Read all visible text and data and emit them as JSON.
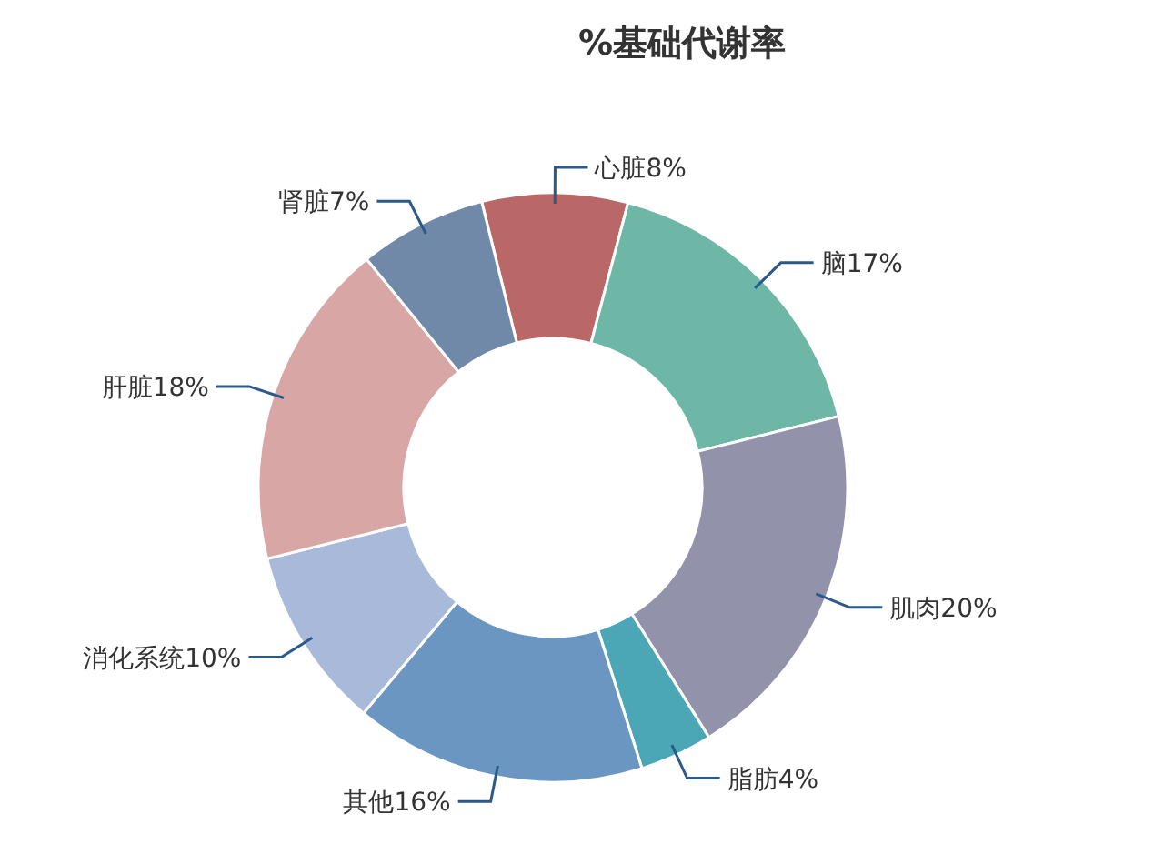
{
  "chart_data": {
    "type": "donut",
    "title": "%基础代谢率",
    "categories": [
      "心脏",
      "脑",
      "肌肉",
      "脂肪",
      "其他",
      "消化系统",
      "肝脏",
      "肾脏"
    ],
    "values": [
      8,
      17,
      20,
      4,
      16,
      10,
      18,
      7
    ],
    "value_labels": [
      "8%",
      "17%",
      "20%",
      "4%",
      "16%",
      "10%",
      "18%",
      "7%"
    ],
    "colors": [
      "#b96767",
      "#6eb6a6",
      "#9292aa",
      "#4ba6b6",
      "#6b96c1",
      "#a9b9d9",
      "#d9a6a6",
      "#7189a9"
    ],
    "legend": false
  }
}
